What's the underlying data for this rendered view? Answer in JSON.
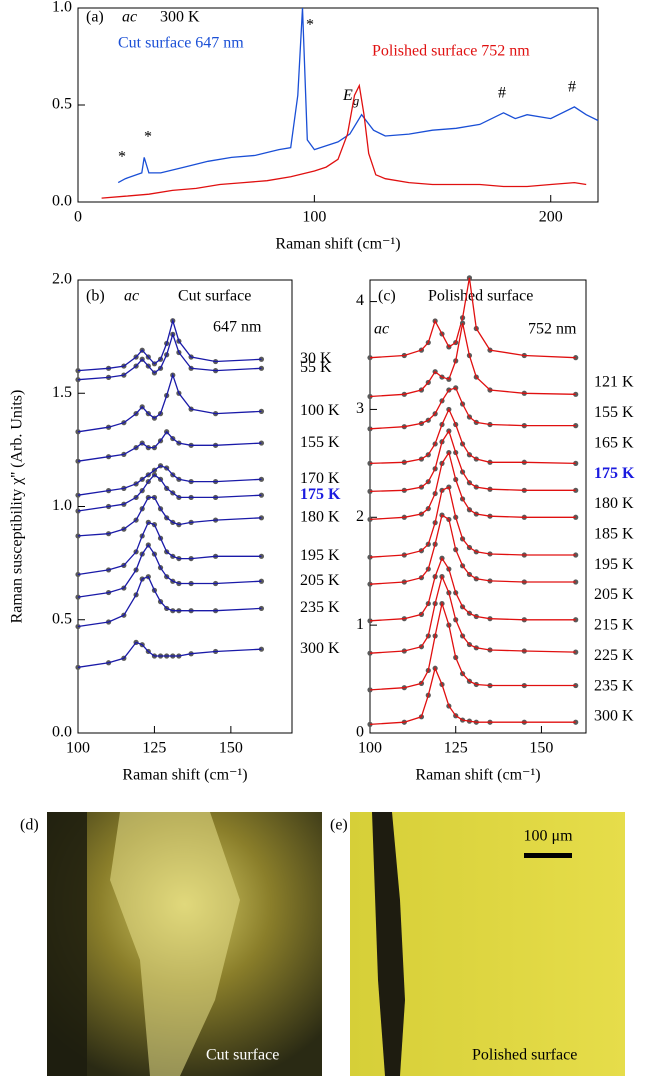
{
  "chart_data": [
    {
      "type": "line",
      "xlabel": "Raman shift (cm⁻¹)",
      "xlim": [
        0,
        220
      ],
      "ylim": [
        0,
        1
      ],
      "xticks": [
        0,
        100,
        200
      ],
      "yticks": [
        {
          "value": 0,
          "label": "0.0"
        },
        0.5,
        {
          "value": 1,
          "label": "1.0"
        }
      ],
      "annotations": [
        "(a)",
        "ac",
        "300 K",
        "Cut surface 647 nm",
        "Polished surface 752 nm",
        "*",
        "*",
        "*",
        "#",
        "#",
        {
          "text": "E",
          "sub": "g"
        }
      ],
      "series": [
        {
          "name": "Cut surface 647 nm",
          "color": "#1a4fd6",
          "x": [
            17,
            20,
            27,
            28,
            30,
            35,
            45,
            55,
            65,
            75,
            85,
            90,
            93,
            95,
            97,
            100,
            105,
            110,
            115,
            120,
            125,
            130,
            140,
            150,
            160,
            170,
            180,
            185,
            190,
            200,
            210,
            215,
            220
          ],
          "values": [
            0.1,
            0.12,
            0.15,
            0.23,
            0.15,
            0.15,
            0.18,
            0.21,
            0.23,
            0.24,
            0.27,
            0.28,
            0.55,
            1.0,
            0.32,
            0.27,
            0.29,
            0.31,
            0.35,
            0.45,
            0.37,
            0.34,
            0.35,
            0.37,
            0.38,
            0.4,
            0.46,
            0.43,
            0.45,
            0.43,
            0.49,
            0.45,
            0.42
          ]
        },
        {
          "name": "Polished surface 752 nm",
          "color": "#e01010",
          "x": [
            10,
            20,
            30,
            40,
            50,
            60,
            70,
            80,
            90,
            100,
            105,
            110,
            114,
            117,
            119,
            121,
            123,
            126,
            130,
            140,
            150,
            160,
            170,
            180,
            190,
            200,
            210,
            215
          ],
          "values": [
            0.02,
            0.03,
            0.04,
            0.06,
            0.07,
            0.09,
            0.1,
            0.11,
            0.13,
            0.16,
            0.18,
            0.22,
            0.35,
            0.55,
            0.6,
            0.45,
            0.25,
            0.14,
            0.12,
            0.1,
            0.09,
            0.09,
            0.09,
            0.08,
            0.08,
            0.09,
            0.1,
            0.09
          ]
        }
      ]
    },
    {
      "type": "line",
      "markers": true,
      "xlabel": "Raman shift (cm⁻¹)",
      "ylabel": "Raman susceptibility  χ'' (Arb. Units)",
      "xlim": [
        100,
        170
      ],
      "ylim": [
        0,
        2
      ],
      "xticks": [
        100,
        125,
        150
      ],
      "yticks": [
        {
          "value": 0,
          "label": "0.0"
        },
        0.5,
        {
          "value": 1,
          "label": "1.0"
        },
        1.5,
        {
          "value": 2,
          "label": "2.0"
        }
      ],
      "annotations": [
        "(b)",
        "ac",
        "Cut surface",
        "647 nm"
      ],
      "x": [
        100,
        110,
        115,
        119,
        121,
        123,
        125,
        127,
        129,
        131,
        133,
        137,
        145,
        160
      ],
      "series": [
        {
          "name": "30 K",
          "color": "#1a1aa8",
          "values": [
            1.6,
            1.61,
            1.62,
            1.66,
            1.69,
            1.66,
            1.63,
            1.65,
            1.72,
            1.82,
            1.73,
            1.66,
            1.64,
            1.65
          ]
        },
        {
          "name": "55 K",
          "color": "#1a1aa8",
          "values": [
            1.56,
            1.57,
            1.58,
            1.62,
            1.65,
            1.62,
            1.59,
            1.61,
            1.67,
            1.76,
            1.68,
            1.61,
            1.6,
            1.61
          ]
        },
        {
          "name": "100 K",
          "color": "#1a1aa8",
          "values": [
            1.33,
            1.35,
            1.37,
            1.41,
            1.44,
            1.41,
            1.39,
            1.41,
            1.49,
            1.58,
            1.5,
            1.43,
            1.41,
            1.42
          ]
        },
        {
          "name": "155 K",
          "color": "#1a1aa8",
          "values": [
            1.2,
            1.22,
            1.23,
            1.26,
            1.28,
            1.26,
            1.26,
            1.29,
            1.33,
            1.3,
            1.28,
            1.27,
            1.27,
            1.28
          ]
        },
        {
          "name": "170 K",
          "color": "#1a1aa8",
          "values": [
            1.05,
            1.07,
            1.08,
            1.1,
            1.12,
            1.14,
            1.16,
            1.18,
            1.17,
            1.14,
            1.12,
            1.11,
            1.11,
            1.12
          ]
        },
        {
          "name": "175 K",
          "color": "#1a1aa8",
          "highlight": "#1a1adf",
          "values": [
            0.98,
            1.0,
            1.01,
            1.04,
            1.07,
            1.11,
            1.14,
            1.12,
            1.08,
            1.06,
            1.04,
            1.04,
            1.04,
            1.05
          ]
        },
        {
          "name": "180 K",
          "color": "#1a1aa8",
          "values": [
            0.87,
            0.88,
            0.9,
            0.94,
            0.99,
            1.04,
            1.04,
            0.99,
            0.95,
            0.93,
            0.92,
            0.93,
            0.94,
            0.95
          ]
        },
        {
          "name": "195 K",
          "color": "#1a1aa8",
          "values": [
            0.7,
            0.72,
            0.74,
            0.8,
            0.87,
            0.93,
            0.92,
            0.86,
            0.8,
            0.78,
            0.77,
            0.77,
            0.78,
            0.78
          ]
        },
        {
          "name": "205 K",
          "color": "#1a1aa8",
          "values": [
            0.6,
            0.62,
            0.64,
            0.72,
            0.79,
            0.83,
            0.79,
            0.73,
            0.69,
            0.67,
            0.66,
            0.66,
            0.66,
            0.67
          ]
        },
        {
          "name": "235 K",
          "color": "#1a1aa8",
          "values": [
            0.47,
            0.49,
            0.52,
            0.61,
            0.68,
            0.69,
            0.63,
            0.58,
            0.55,
            0.54,
            0.54,
            0.54,
            0.54,
            0.55
          ]
        },
        {
          "name": "300 K",
          "color": "#1a1aa8",
          "values": [
            0.29,
            0.31,
            0.33,
            0.4,
            0.39,
            0.36,
            0.34,
            0.34,
            0.34,
            0.34,
            0.34,
            0.35,
            0.36,
            0.37
          ]
        }
      ]
    },
    {
      "type": "line",
      "markers": true,
      "xlabel": "Raman shift (cm⁻¹)",
      "xlim": [
        100,
        163
      ],
      "ylim": [
        0,
        4.2
      ],
      "xticks": [
        100,
        125,
        150
      ],
      "yticks": [
        0,
        1,
        2,
        3,
        4
      ],
      "annotations": [
        "(c)",
        "Polished surface",
        "ac",
        "752 nm"
      ],
      "x": [
        100,
        110,
        115,
        117,
        119,
        121,
        123,
        125,
        127,
        129,
        131,
        135,
        145,
        160
      ],
      "series": [
        {
          "name": "121 K",
          "color": "#e01010",
          "values": [
            3.48,
            3.5,
            3.55,
            3.62,
            3.82,
            3.7,
            3.58,
            3.62,
            3.85,
            4.22,
            3.75,
            3.55,
            3.5,
            3.48
          ]
        },
        {
          "name": "155 K",
          "color": "#e01010",
          "values": [
            3.12,
            3.14,
            3.18,
            3.25,
            3.35,
            3.3,
            3.28,
            3.45,
            3.8,
            3.5,
            3.3,
            3.18,
            3.15,
            3.14
          ]
        },
        {
          "name": "165 K",
          "color": "#e01010",
          "values": [
            2.82,
            2.84,
            2.87,
            2.9,
            2.96,
            3.08,
            3.18,
            3.2,
            3.05,
            2.93,
            2.88,
            2.86,
            2.85,
            2.85
          ]
        },
        {
          "name": "175 K",
          "color": "#e01010",
          "highlight": "#1a1adf",
          "values": [
            2.5,
            2.51,
            2.54,
            2.58,
            2.68,
            2.86,
            3.0,
            2.86,
            2.68,
            2.58,
            2.54,
            2.51,
            2.51,
            2.5
          ]
        },
        {
          "name": "180 K",
          "color": "#e01010",
          "values": [
            2.24,
            2.25,
            2.28,
            2.33,
            2.45,
            2.7,
            2.8,
            2.6,
            2.42,
            2.32,
            2.28,
            2.26,
            2.25,
            2.25
          ]
        },
        {
          "name": "185 K",
          "color": "#e01010",
          "values": [
            1.98,
            2.0,
            2.03,
            2.08,
            2.22,
            2.5,
            2.6,
            2.35,
            2.17,
            2.07,
            2.03,
            2.01,
            2.0,
            2.0
          ]
        },
        {
          "name": "195 K",
          "color": "#e01010",
          "values": [
            1.63,
            1.65,
            1.69,
            1.75,
            1.95,
            2.25,
            2.28,
            2.0,
            1.8,
            1.72,
            1.68,
            1.66,
            1.65,
            1.65
          ]
        },
        {
          "name": "205 K",
          "color": "#e01010",
          "values": [
            1.38,
            1.4,
            1.44,
            1.52,
            1.75,
            2.02,
            1.98,
            1.7,
            1.55,
            1.47,
            1.43,
            1.41,
            1.4,
            1.4
          ]
        },
        {
          "name": "215 K",
          "color": "#e01010",
          "values": [
            1.04,
            1.06,
            1.1,
            1.2,
            1.45,
            1.62,
            1.52,
            1.3,
            1.17,
            1.11,
            1.08,
            1.06,
            1.05,
            1.05
          ]
        },
        {
          "name": "225 K",
          "color": "#e01010",
          "values": [
            0.74,
            0.76,
            0.8,
            0.9,
            1.2,
            1.45,
            1.3,
            1.05,
            0.9,
            0.82,
            0.79,
            0.77,
            0.76,
            0.75
          ]
        },
        {
          "name": "235 K",
          "color": "#e01010",
          "values": [
            0.4,
            0.42,
            0.46,
            0.58,
            0.9,
            1.2,
            1.0,
            0.7,
            0.55,
            0.48,
            0.45,
            0.44,
            0.44,
            0.44
          ]
        },
        {
          "name": "300 K",
          "color": "#e01010",
          "values": [
            0.08,
            0.1,
            0.15,
            0.35,
            0.6,
            0.45,
            0.25,
            0.16,
            0.12,
            0.11,
            0.1,
            0.1,
            0.1,
            0.1
          ]
        }
      ]
    }
  ],
  "images": [
    {
      "label": "(d)",
      "caption": "Cut surface"
    },
    {
      "label": "(e)",
      "caption": "Polished surface",
      "scale_bar": "100 μm"
    }
  ]
}
